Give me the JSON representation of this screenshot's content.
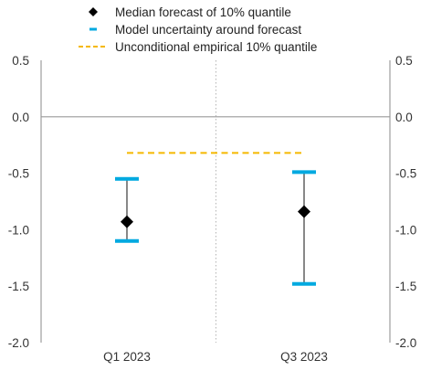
{
  "chart_data": {
    "type": "scatter",
    "categories": [
      "Q1 2023",
      "Q3 2023"
    ],
    "series": [
      {
        "name": "Median forecast of 10% quantile",
        "values": [
          -0.93,
          -0.84
        ],
        "color": "#000000",
        "marker": "diamond"
      },
      {
        "name": "Model uncertainty around forecast",
        "low": [
          -1.1,
          -1.48
        ],
        "high": [
          -0.55,
          -0.49
        ],
        "color": "#00a9e0",
        "marker": "error-bar"
      },
      {
        "name": "Unconditional empirical 10% quantile",
        "values": [
          -0.32,
          -0.32
        ],
        "color": "#f5b800",
        "marker": "dashed-line"
      }
    ],
    "ylim": [
      -2.0,
      0.5
    ],
    "yticks": [
      "0.5",
      "0.0",
      "-0.5",
      "-1.0",
      "-1.5",
      "-2.0"
    ],
    "ytick_values": [
      0.5,
      0.0,
      -0.5,
      -1.0,
      -1.5,
      -2.0
    ],
    "dual_y_axis": true,
    "legend_placement": "top",
    "vertical_separator_between_categories": true
  }
}
